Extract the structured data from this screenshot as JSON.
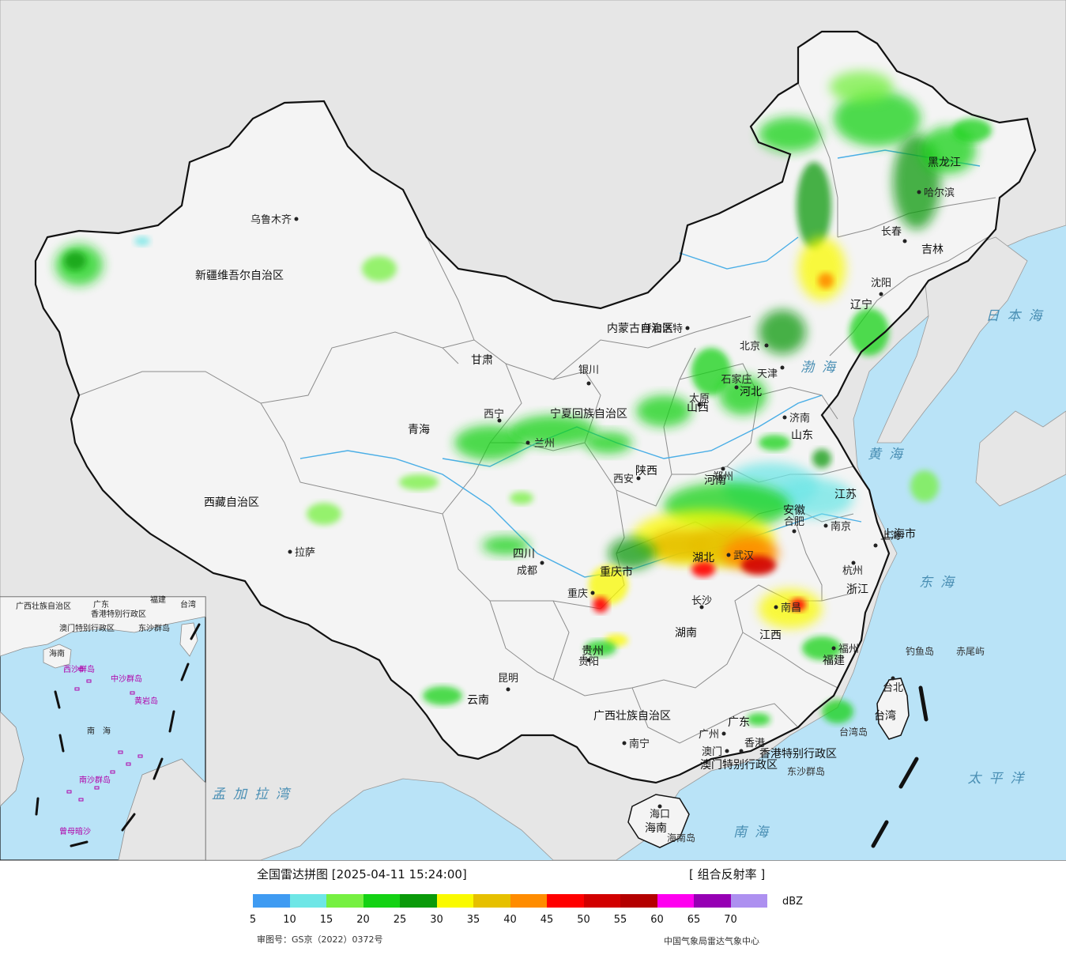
{
  "map": {
    "colors": {
      "sea": "#b9e3f7",
      "land_outside": "#e6e6e6",
      "china_land": "#f4f4f4",
      "border": "#111111",
      "province_border": "#8c8c8c",
      "river": "#4aaee6"
    },
    "cities": [
      {
        "name": "乌鲁木齐",
        "dot": "capital-dot"
      },
      {
        "name": "拉萨"
      },
      {
        "name": "西宁"
      },
      {
        "name": "兰州"
      },
      {
        "name": "银川"
      },
      {
        "name": "呼和浩特"
      },
      {
        "name": "北京"
      },
      {
        "name": "天津"
      },
      {
        "name": "石家庄"
      },
      {
        "name": "太原"
      },
      {
        "name": "济南"
      },
      {
        "name": "郑州"
      },
      {
        "name": "西安"
      },
      {
        "name": "成都"
      },
      {
        "name": "重庆"
      },
      {
        "name": "贵阳"
      },
      {
        "name": "昆明"
      },
      {
        "name": "南宁"
      },
      {
        "name": "广州"
      },
      {
        "name": "澳门"
      },
      {
        "name": "香港"
      },
      {
        "name": "海口"
      },
      {
        "name": "长沙"
      },
      {
        "name": "武汉"
      },
      {
        "name": "南昌"
      },
      {
        "name": "合肥"
      },
      {
        "name": "南京"
      },
      {
        "name": "上海"
      },
      {
        "name": "杭州"
      },
      {
        "name": "福州"
      },
      {
        "name": "台北"
      },
      {
        "name": "沈阳"
      },
      {
        "name": "长春"
      },
      {
        "name": "哈尔滨"
      }
    ],
    "provinces": [
      "新疆维吾尔自治区",
      "西藏自治区",
      "青海",
      "甘肃",
      "宁夏回族自治区",
      "内蒙古自治区",
      "黑龙江",
      "吉林",
      "辽宁",
      "河北",
      "山西",
      "山东",
      "陕西",
      "河南",
      "四川",
      "重庆市",
      "湖北",
      "湖南",
      "江西",
      "安徽",
      "江苏",
      "上海市",
      "浙江",
      "福建",
      "台湾",
      "贵州",
      "云南",
      "广西壮族自治区",
      "广东",
      "海南",
      "香港特别行政区",
      "澳门特别行政区"
    ],
    "seas": [
      "日本海",
      "渤海",
      "黄海",
      "东海",
      "太平洋",
      "南海",
      "孟加拉湾"
    ],
    "islands": [
      "钓鱼岛",
      "赤尾屿",
      "台湾岛",
      "东沙群岛",
      "海南岛"
    ],
    "inset": {
      "labels": [
        "广西壮族自治区",
        "广东",
        "福建",
        "台湾",
        "香港特别行政区",
        "澳门特别行政区",
        "东沙群岛",
        "海南",
        "西沙群岛",
        "中沙群岛",
        "黄岩岛",
        "南海",
        "南沙群岛",
        "曾母暗沙"
      ]
    }
  },
  "legend": {
    "title": "全国雷达拼图 [2025-04-11 15:24:00]",
    "product": "[ 组合反射率 ]",
    "unit": "dBZ",
    "scale": [
      {
        "from": 5,
        "color": "#3f9bf2"
      },
      {
        "from": 10,
        "color": "#6ee6e6"
      },
      {
        "from": 15,
        "color": "#76f041"
      },
      {
        "from": 20,
        "color": "#14d214"
      },
      {
        "from": 25,
        "color": "#0a9a0a"
      },
      {
        "from": 30,
        "color": "#fafa00"
      },
      {
        "from": 35,
        "color": "#e6c000"
      },
      {
        "from": 40,
        "color": "#ff8c00"
      },
      {
        "from": 45,
        "color": "#ff0000"
      },
      {
        "from": 50,
        "color": "#d20000"
      },
      {
        "from": 55,
        "color": "#b40000"
      },
      {
        "from": 60,
        "color": "#ff00f0"
      },
      {
        "from": 65,
        "color": "#9600b4"
      },
      {
        "from": 70,
        "color": "#ad90f0"
      }
    ],
    "ticks": [
      "5",
      "10",
      "15",
      "20",
      "25",
      "30",
      "35",
      "40",
      "45",
      "50",
      "55",
      "60",
      "65",
      "70"
    ],
    "approval": "审图号：GS京（2022）0372号",
    "credit": "中国气象局雷达气象中心"
  }
}
